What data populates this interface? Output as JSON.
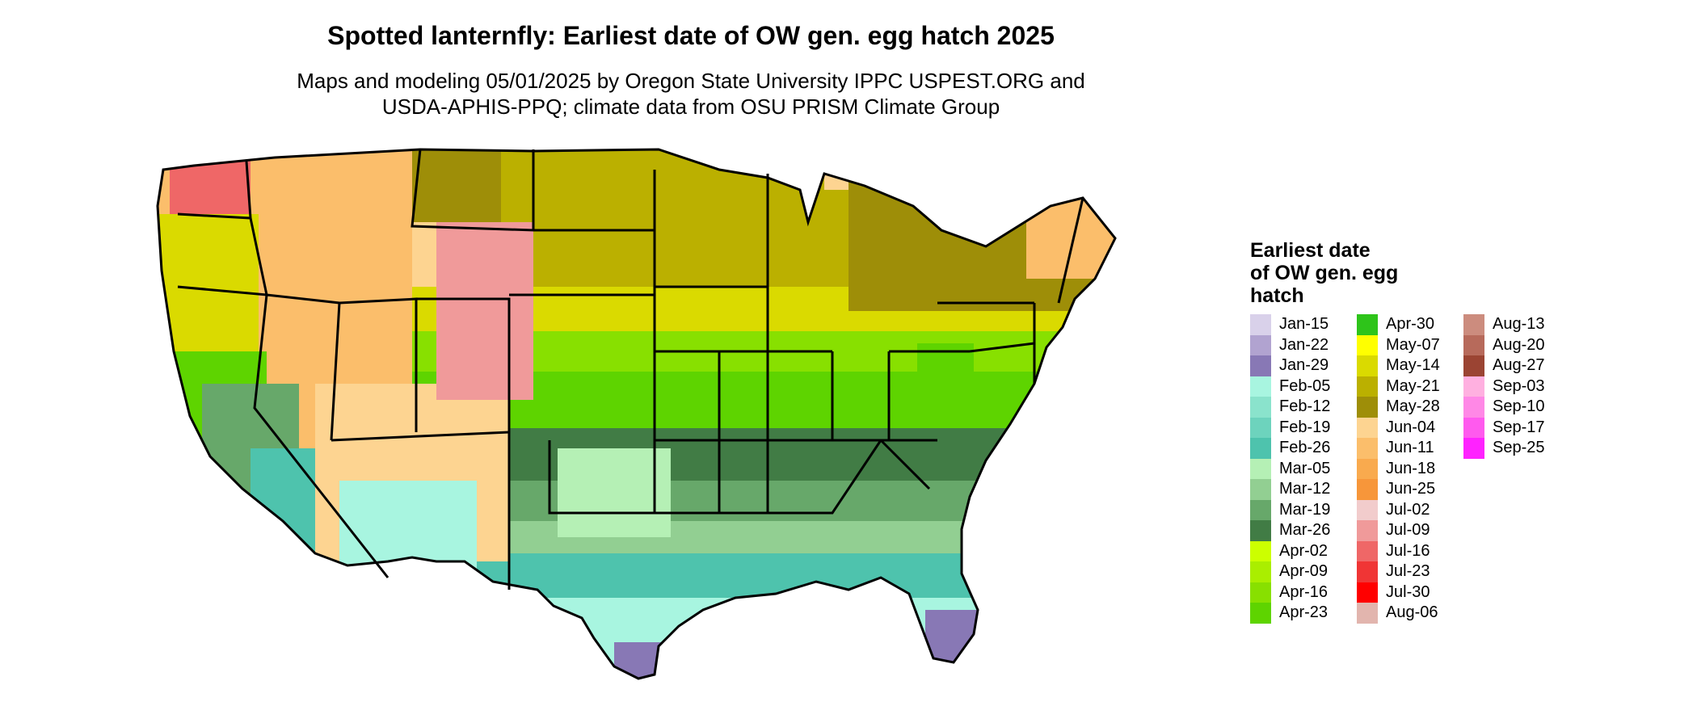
{
  "title": "Spotted lanternfly: Earliest date of OW gen. egg hatch 2025",
  "subtitle_line1": "Maps and modeling 05/01/2025 by Oregon State University IPPC USPEST.ORG and",
  "subtitle_line2": "USDA-APHIS-PPQ; climate data from OSU PRISM Climate Group",
  "legend": {
    "title_line1": "Earliest date",
    "title_line2": "of OW gen. egg",
    "title_line3": "hatch",
    "col1": [
      {
        "label": "Jan-15",
        "color": "#d9d1ea"
      },
      {
        "label": "Jan-22",
        "color": "#b1a3d0"
      },
      {
        "label": "Jan-29",
        "color": "#8878b5"
      },
      {
        "label": "Feb-05",
        "color": "#a8f5e0"
      },
      {
        "label": "Feb-12",
        "color": "#8ae3cc"
      },
      {
        "label": "Feb-19",
        "color": "#6dd3bd"
      },
      {
        "label": "Feb-26",
        "color": "#4ec3ad"
      },
      {
        "label": "Mar-05",
        "color": "#b5f0b5"
      },
      {
        "label": "Mar-12",
        "color": "#92cf92"
      },
      {
        "label": "Mar-19",
        "color": "#67a86a"
      },
      {
        "label": "Mar-26",
        "color": "#417c45"
      },
      {
        "label": "Apr-02",
        "color": "#ccff00"
      },
      {
        "label": "Apr-09",
        "color": "#aaee00"
      },
      {
        "label": "Apr-16",
        "color": "#88e000"
      },
      {
        "label": "Apr-23",
        "color": "#5ed400"
      }
    ],
    "col2": [
      {
        "label": "Apr-30",
        "color": "#2ec41a"
      },
      {
        "label": "May-07",
        "color": "#ffff00"
      },
      {
        "label": "May-14",
        "color": "#dada00"
      },
      {
        "label": "May-21",
        "color": "#bbb000"
      },
      {
        "label": "May-28",
        "color": "#9e8e08"
      },
      {
        "label": "Jun-04",
        "color": "#fdd491"
      },
      {
        "label": "Jun-11",
        "color": "#fbbe6b"
      },
      {
        "label": "Jun-18",
        "color": "#f9aa4e"
      },
      {
        "label": "Jun-25",
        "color": "#f7963a"
      },
      {
        "label": "Jul-02",
        "color": "#f2cccc"
      },
      {
        "label": "Jul-09",
        "color": "#f09a9a"
      },
      {
        "label": "Jul-16",
        "color": "#ef6767"
      },
      {
        "label": "Jul-23",
        "color": "#f03535"
      },
      {
        "label": "Jul-30",
        "color": "#ff0000"
      },
      {
        "label": "Aug-06",
        "color": "#e2b5ae"
      }
    ],
    "col3": [
      {
        "label": "Aug-13",
        "color": "#cc8c7e"
      },
      {
        "label": "Aug-20",
        "color": "#b76a5b"
      },
      {
        "label": "Aug-27",
        "color": "#9b4433"
      },
      {
        "label": "Sep-03",
        "color": "#ffb0e0"
      },
      {
        "label": "Sep-10",
        "color": "#ff88e6"
      },
      {
        "label": "Sep-17",
        "color": "#ff5aee"
      },
      {
        "label": "Sep-25",
        "color": "#ff22ff"
      }
    ]
  }
}
